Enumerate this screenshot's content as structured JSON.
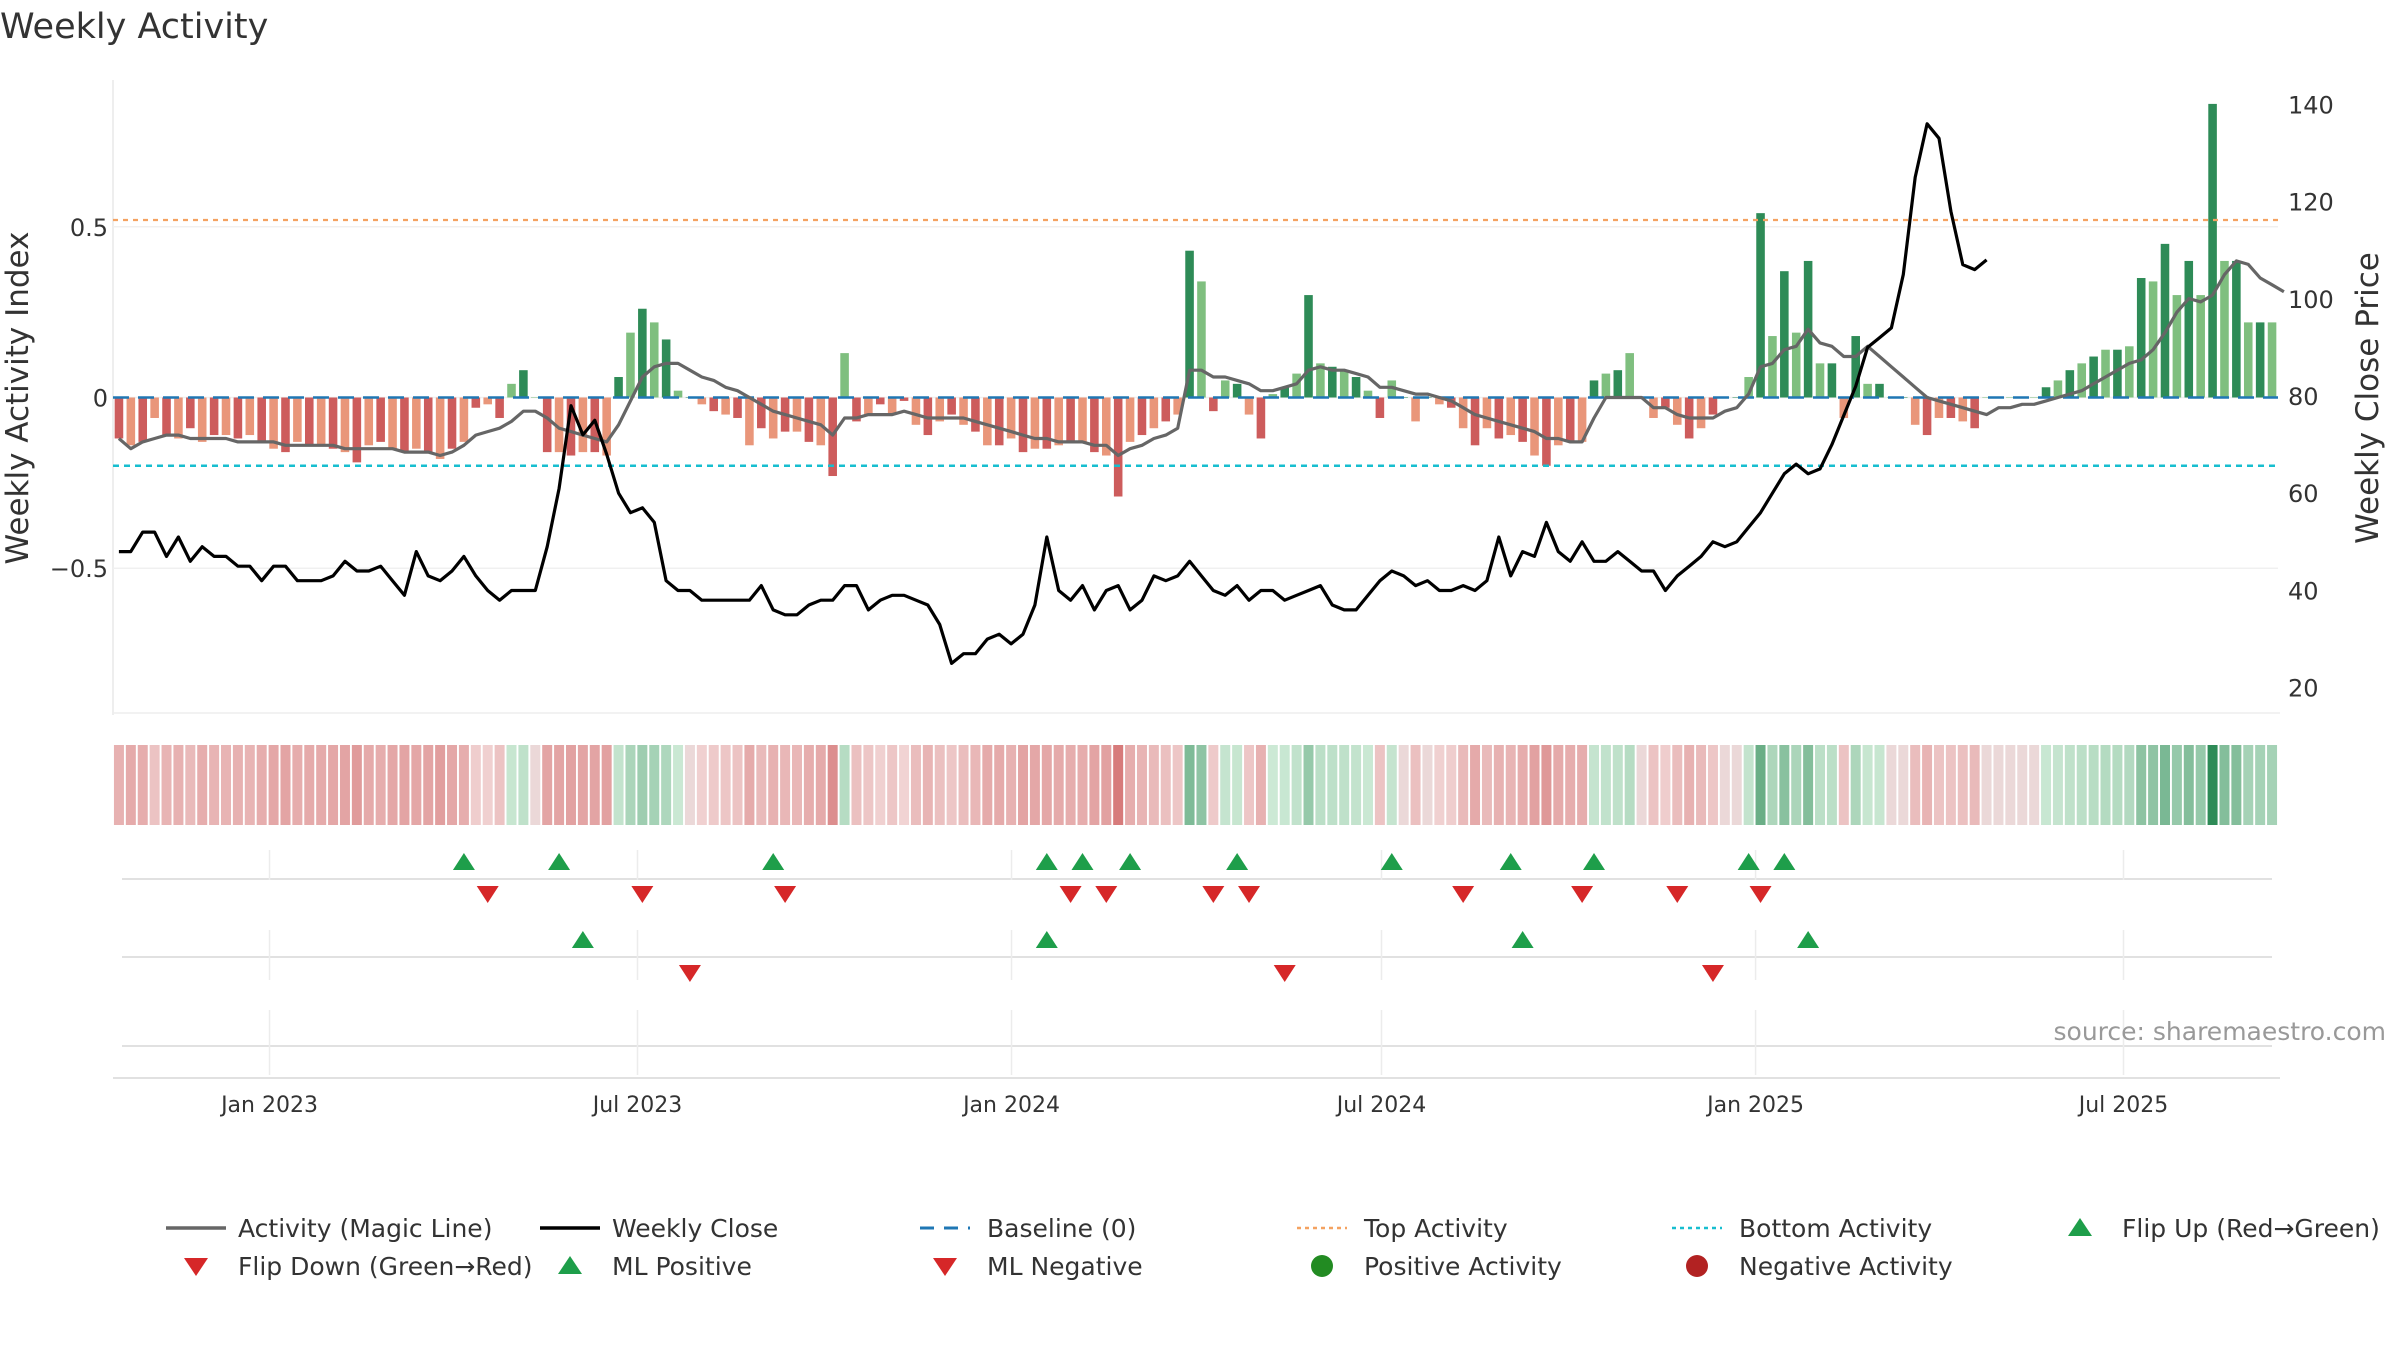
{
  "chart_data": {
    "type": "bar+line",
    "title": "Weekly Activity",
    "ylabel_left": "Weekly Activity Index",
    "ylabel_right": "Weekly Close Price",
    "ylim_left": [
      -0.93,
      0.93
    ],
    "yticks_left": [
      {
        "v": 0.5,
        "label": "0.5"
      },
      {
        "v": 0,
        "label": "0"
      },
      {
        "v": -0.5,
        "label": "−0.5"
      }
    ],
    "ylim_right": [
      15,
      145
    ],
    "yticks_right": [
      20,
      40,
      60,
      80,
      100,
      120,
      140
    ],
    "top_activity": 0.52,
    "bottom_activity": -0.2,
    "baseline": 0,
    "x_start": "2022-10-16",
    "x_end": "2025-09-15",
    "x_ticks": [
      {
        "date": "2023-01-01",
        "label": "Jan 2023"
      },
      {
        "date": "2023-07-01",
        "label": "Jul 2023"
      },
      {
        "date": "2024-01-01",
        "label": "Jan 2024"
      },
      {
        "date": "2024-07-01",
        "label": "Jul 2024"
      },
      {
        "date": "2025-01-01",
        "label": "Jan 2025"
      },
      {
        "date": "2025-07-01",
        "label": "Jul 2025"
      }
    ],
    "activity": [
      -0.12,
      -0.14,
      -0.13,
      -0.06,
      -0.11,
      -0.12,
      -0.09,
      -0.13,
      -0.11,
      -0.11,
      -0.12,
      -0.11,
      -0.13,
      -0.15,
      -0.16,
      -0.13,
      -0.14,
      -0.14,
      -0.15,
      -0.16,
      -0.19,
      -0.14,
      -0.13,
      -0.15,
      -0.16,
      -0.15,
      -0.16,
      -0.18,
      -0.15,
      -0.13,
      -0.03,
      -0.02,
      -0.06,
      0.04,
      0.08,
      0,
      -0.16,
      -0.16,
      -0.17,
      -0.16,
      -0.16,
      -0.17,
      0.06,
      0.19,
      0.26,
      0.22,
      0.17,
      0.02,
      0,
      -0.02,
      -0.04,
      -0.05,
      -0.06,
      -0.14,
      -0.09,
      -0.12,
      -0.1,
      -0.1,
      -0.13,
      -0.14,
      -0.23,
      0.13,
      -0.07,
      -0.05,
      -0.02,
      -0.05,
      -0.01,
      -0.08,
      -0.11,
      -0.07,
      -0.05,
      -0.08,
      -0.1,
      -0.14,
      -0.14,
      -0.12,
      -0.16,
      -0.15,
      -0.15,
      -0.14,
      -0.13,
      -0.13,
      -0.16,
      -0.17,
      -0.29,
      -0.13,
      -0.11,
      -0.09,
      -0.07,
      -0.05,
      0.43,
      0.34,
      -0.04,
      0.05,
      0.04,
      -0.05,
      -0.12,
      0.01,
      0.03,
      0.07,
      0.3,
      0.1,
      0.09,
      0.08,
      0.06,
      0.02,
      -0.06,
      0.05,
      0,
      -0.07,
      0,
      -0.02,
      -0.03,
      -0.09,
      -0.14,
      -0.09,
      -0.12,
      -0.11,
      -0.13,
      -0.17,
      -0.2,
      -0.14,
      -0.13,
      -0.13,
      0.05,
      0.07,
      0.08,
      0.13,
      0,
      -0.06,
      -0.03,
      -0.08,
      -0.12,
      -0.09,
      -0.05,
      0,
      0,
      0.06,
      0.54,
      0.18,
      0.37,
      0.19,
      0.4,
      0.1,
      0.1,
      -0.06,
      0.18,
      0.04,
      0.04,
      0,
      0,
      -0.08,
      -0.11,
      -0.06,
      -0.06,
      -0.07,
      -0.09,
      0,
      0,
      0,
      0,
      0,
      0.03,
      0.05,
      0.08,
      0.1,
      0.12,
      0.14,
      0.14,
      0.15,
      0.35,
      0.34,
      0.45,
      0.3,
      0.4,
      0.3,
      0.86,
      0.4,
      0.4,
      0.22,
      0.22,
      0.22
    ],
    "magic_line": [
      -0.12,
      -0.15,
      -0.13,
      -0.12,
      -0.11,
      -0.11,
      -0.12,
      -0.12,
      -0.12,
      -0.12,
      -0.13,
      -0.13,
      -0.13,
      -0.13,
      -0.14,
      -0.14,
      -0.14,
      -0.14,
      -0.14,
      -0.15,
      -0.15,
      -0.15,
      -0.15,
      -0.15,
      -0.16,
      -0.16,
      -0.16,
      -0.17,
      -0.16,
      -0.14,
      -0.11,
      -0.1,
      -0.09,
      -0.07,
      -0.04,
      -0.04,
      -0.06,
      -0.09,
      -0.1,
      -0.11,
      -0.12,
      -0.13,
      -0.08,
      -0.01,
      0.06,
      0.09,
      0.1,
      0.1,
      0.08,
      0.06,
      0.05,
      0.03,
      0.02,
      0,
      -0.02,
      -0.04,
      -0.05,
      -0.06,
      -0.07,
      -0.08,
      -0.11,
      -0.06,
      -0.06,
      -0.05,
      -0.05,
      -0.05,
      -0.04,
      -0.05,
      -0.06,
      -0.06,
      -0.06,
      -0.06,
      -0.07,
      -0.08,
      -0.09,
      -0.1,
      -0.11,
      -0.12,
      -0.12,
      -0.13,
      -0.13,
      -0.13,
      -0.14,
      -0.14,
      -0.17,
      -0.15,
      -0.14,
      -0.12,
      -0.11,
      -0.09,
      0.08,
      0.08,
      0.06,
      0.06,
      0.05,
      0.04,
      0.02,
      0.02,
      0.03,
      0.04,
      0.08,
      0.09,
      0.08,
      0.08,
      0.07,
      0.06,
      0.03,
      0.03,
      0.02,
      0.01,
      0.01,
      0,
      -0.01,
      -0.03,
      -0.05,
      -0.06,
      -0.07,
      -0.08,
      -0.09,
      -0.1,
      -0.12,
      -0.12,
      -0.13,
      -0.13,
      -0.06,
      0,
      0,
      0,
      0,
      -0.03,
      -0.03,
      -0.05,
      -0.06,
      -0.06,
      -0.06,
      -0.04,
      -0.03,
      0.01,
      0.09,
      0.1,
      0.14,
      0.15,
      0.2,
      0.16,
      0.15,
      0.12,
      0.12,
      0.15,
      0.12,
      0.09,
      0.06,
      0.03,
      0,
      -0.01,
      -0.02,
      -0.03,
      -0.04,
      -0.05,
      -0.03,
      -0.03,
      -0.02,
      -0.02,
      -0.01,
      0,
      0.01,
      0.02,
      0.04,
      0.06,
      0.08,
      0.1,
      0.11,
      0.14,
      0.19,
      0.25,
      0.29,
      0.28,
      0.3,
      0.36,
      0.4,
      0.39,
      0.35,
      0.33,
      0.31
    ],
    "weekly_close": [
      48,
      48,
      52,
      52,
      47,
      51,
      46,
      49,
      47,
      47,
      45,
      45,
      42,
      45,
      45,
      42,
      42,
      42,
      43,
      46,
      44,
      44,
      45,
      42,
      39,
      48,
      43,
      42,
      44,
      47,
      43,
      40,
      38,
      40,
      40,
      40,
      49,
      61,
      78,
      72,
      75,
      68,
      60,
      56,
      57,
      54,
      42,
      40,
      40,
      38,
      38,
      38,
      38,
      38,
      41,
      36,
      35,
      35,
      37,
      38,
      38,
      41,
      41,
      36,
      38,
      39,
      39,
      38,
      37,
      33,
      25,
      27,
      27,
      30,
      31,
      29,
      31,
      37,
      51,
      40,
      38,
      41,
      36,
      40,
      41,
      36,
      38,
      43,
      42,
      43,
      46,
      43,
      40,
      39,
      41,
      38,
      40,
      40,
      38,
      39,
      40,
      41,
      37,
      36,
      36,
      39,
      42,
      44,
      43,
      41,
      42,
      40,
      40,
      41,
      40,
      42,
      51,
      43,
      48,
      47,
      54,
      48,
      46,
      50,
      46,
      46,
      48,
      46,
      44,
      44,
      40,
      43,
      45,
      47,
      50,
      49,
      50,
      53,
      56,
      60,
      64,
      66,
      64,
      65,
      70,
      76,
      82,
      90,
      92,
      94,
      105,
      125,
      136,
      133,
      118,
      107,
      106,
      108
    ],
    "legend": [
      {
        "label": "Activity (Magic Line)",
        "kind": "line",
        "color": "#666666"
      },
      {
        "label": "Weekly Close",
        "kind": "line",
        "color": "#000000"
      },
      {
        "label": "Baseline (0)",
        "kind": "dash",
        "color": "#1f77b4"
      },
      {
        "label": "Top Activity",
        "kind": "dot",
        "color": "#f4a261"
      },
      {
        "label": "Bottom Activity",
        "kind": "dot",
        "color": "#17becf"
      },
      {
        "label": "Flip Up (Red→Green)",
        "kind": "tri-up",
        "color": "#1e9e4a"
      },
      {
        "label": "Flip Down (Green→Red)",
        "kind": "tri-down",
        "color": "#d62728"
      },
      {
        "label": "ML Positive",
        "kind": "tri-up",
        "color": "#1e9e4a"
      },
      {
        "label": "ML Negative",
        "kind": "tri-down",
        "color": "#d62728"
      },
      {
        "label": "Positive Activity",
        "kind": "circle",
        "color": "#228b22"
      },
      {
        "label": "Negative Activity",
        "kind": "circle",
        "color": "#b22222"
      }
    ],
    "flip_up_weeks": [
      29,
      37,
      55,
      78,
      81,
      85,
      94,
      107,
      117,
      124,
      137,
      140
    ],
    "flip_down_weeks": [
      31,
      44,
      56,
      80,
      83,
      92,
      95,
      113,
      123,
      131,
      138
    ],
    "ml_positive_weeks": [
      39,
      78,
      118,
      142
    ],
    "ml_negative_weeks": [
      48,
      98,
      134
    ]
  },
  "colors": {
    "pos_dark": "#2e8b57",
    "pos_light": "#7fbf7f",
    "neg_dark": "#cd5c5c",
    "neg_light": "#e9967a",
    "magic_line": "#666666",
    "close_line": "#000000",
    "baseline": "#1f77b4",
    "top_activity": "#f4a261",
    "bottom_activity": "#17becf",
    "flip_up": "#1e9e4a",
    "flip_down": "#d62728"
  },
  "source": "source: sharemaestro.com"
}
